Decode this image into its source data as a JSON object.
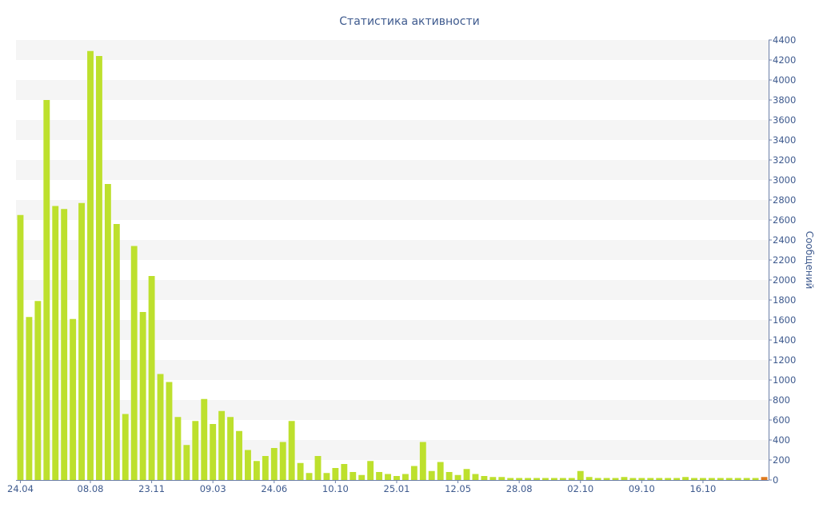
{
  "colors": {
    "bar": "#bde02d",
    "bar_last": "#e07b1f",
    "band": "#f5f5f5",
    "axis": "#6c7fa8",
    "text": "#3e5a8e"
  },
  "chart_data": {
    "type": "bar",
    "title": "Статистика активности",
    "xlabel": "",
    "ylabel": "Сообщений",
    "ylim": [
      0,
      4400
    ],
    "y_ticks": [
      0,
      200,
      400,
      600,
      800,
      1000,
      1200,
      1400,
      1600,
      1800,
      2000,
      2200,
      2400,
      2600,
      2800,
      3000,
      3200,
      3400,
      3600,
      3800,
      4000,
      4200,
      4400
    ],
    "y_axis_position": "right",
    "grid": "alternating horizontal bands",
    "x_tick_labels": [
      {
        "index": 0,
        "label": "24.04"
      },
      {
        "index": 8,
        "label": "08.08"
      },
      {
        "index": 15,
        "label": "23.11"
      },
      {
        "index": 22,
        "label": "09.03"
      },
      {
        "index": 29,
        "label": "24.06"
      },
      {
        "index": 36,
        "label": "10.10"
      },
      {
        "index": 43,
        "label": "25.01"
      },
      {
        "index": 50,
        "label": "12.05"
      },
      {
        "index": 57,
        "label": "28.08"
      },
      {
        "index": 64,
        "label": "02.10"
      },
      {
        "index": 71,
        "label": "09.10"
      },
      {
        "index": 78,
        "label": "16.10"
      }
    ],
    "values": [
      2650,
      1630,
      1790,
      3800,
      2740,
      2710,
      1610,
      2770,
      4290,
      4240,
      2960,
      2560,
      660,
      2340,
      1680,
      2040,
      1060,
      980,
      630,
      350,
      590,
      810,
      560,
      690,
      630,
      490,
      300,
      190,
      240,
      320,
      380,
      590,
      170,
      70,
      240,
      70,
      120,
      160,
      80,
      50,
      190,
      80,
      60,
      40,
      60,
      140,
      380,
      90,
      180,
      80,
      50,
      110,
      60,
      40,
      30,
      30,
      20,
      20,
      20,
      20,
      20,
      20,
      20,
      20,
      90,
      30,
      20,
      20,
      20,
      30,
      20,
      20,
      20,
      20,
      20,
      20,
      30,
      20,
      20,
      20,
      20,
      20,
      20,
      20,
      20,
      30
    ]
  }
}
